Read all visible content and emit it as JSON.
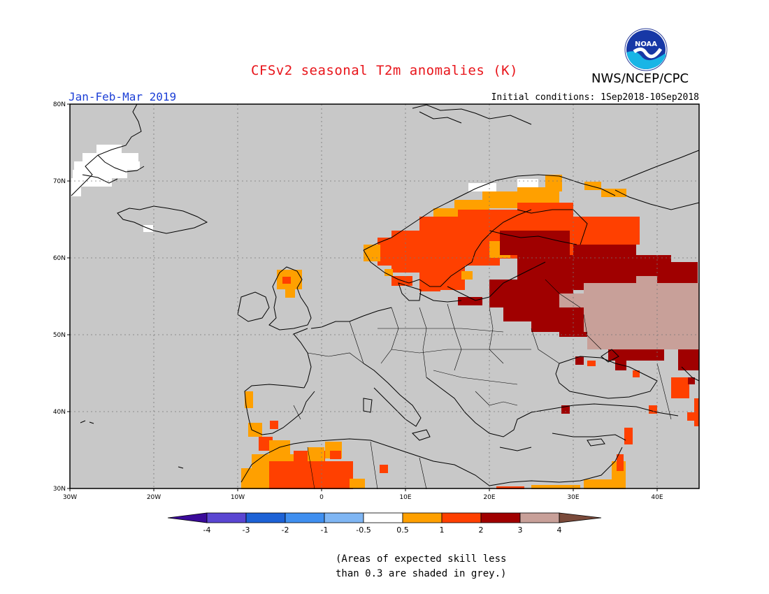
{
  "header": {
    "title": "CFSv2 seasonal T2m anomalies (K)",
    "org": "NWS/NCEP/CPC",
    "logo_text": "NOAA",
    "season": "Jan-Feb-Mar 2019",
    "initial_conditions": "Initial conditions: 1Sep2018-10Sep2018"
  },
  "map": {
    "lon_range": [
      -30,
      45
    ],
    "lat_range": [
      30,
      80
    ],
    "lat_labels": [
      "80N",
      "70N",
      "60N",
      "50N",
      "40N",
      "30N"
    ],
    "lon_labels": [
      "30W",
      "20W",
      "10W",
      "0",
      "10E",
      "20E",
      "30E",
      "40E"
    ],
    "background_color": "#c8c8c8",
    "grid": "dotted"
  },
  "colorbar": {
    "labels": [
      "-4",
      "-3",
      "-2",
      "-1",
      "-0.5",
      "0.5",
      "1",
      "2",
      "3",
      "4"
    ],
    "colors": [
      "#3a0a99",
      "#5a46d2",
      "#1d62d6",
      "#3f8ff0",
      "#7fb6f4",
      "#ffffff",
      "#ffa000",
      "#ff4000",
      "#a00000",
      "#c8a099",
      "#7a4a3a"
    ]
  },
  "footnote": {
    "line1": "(Areas of expected skill less",
    "line2": "than 0.3 are shaded in grey.)"
  }
}
